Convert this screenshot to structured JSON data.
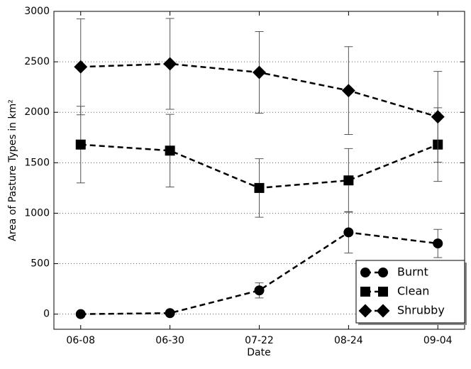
{
  "chart_data": {
    "type": "line",
    "x_label": "Date",
    "y_label": "Area of Pasture Types in km²",
    "categories": [
      "06-08",
      "06-30",
      "07-22",
      "08-24",
      "09-04"
    ],
    "series": [
      {
        "name": "Burnt",
        "color": "#000000",
        "marker": "circle",
        "values": [
          0,
          10,
          235,
          810,
          700
        ],
        "errors": [
          0,
          0,
          75,
          205,
          140
        ]
      },
      {
        "name": "Clean",
        "color": "#000000",
        "marker": "square",
        "values": [
          1680,
          1620,
          1250,
          1325,
          1680
        ],
        "errors": [
          380,
          360,
          290,
          315,
          365
        ]
      },
      {
        "name": "Shrubby",
        "color": "#000000",
        "marker": "diamond",
        "values": [
          2450,
          2480,
          2395,
          2215,
          1955
        ],
        "errors": [
          475,
          450,
          405,
          435,
          450
        ]
      }
    ],
    "ylim": [
      -150,
      3000
    ],
    "yticks": [
      0,
      500,
      1000,
      1500,
      2000,
      2500,
      3000
    ],
    "grid": true,
    "legend": "lower right"
  }
}
